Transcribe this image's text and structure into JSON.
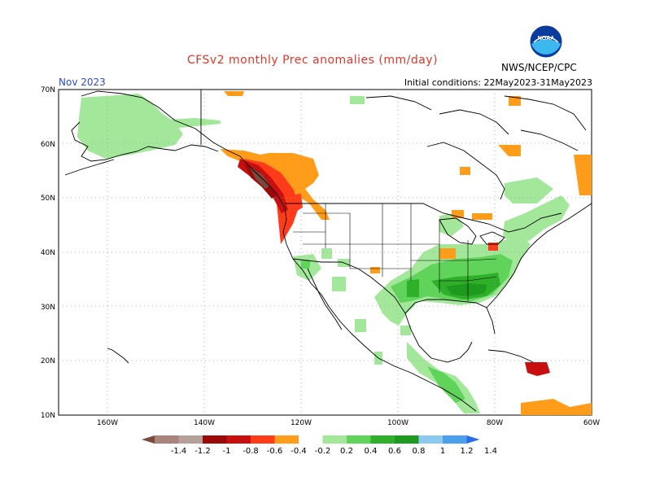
{
  "header": {
    "title": "CFSv2 monthly Prec anomalies (mm/day)",
    "month": "Nov 2023",
    "initial_conditions": "Initial conditions: 22May2023-31May2023",
    "agency": "NWS/NCEP/CPC",
    "logo_text": "NOAA"
  },
  "map": {
    "lat_labels": [
      "70N",
      "60N",
      "50N",
      "40N",
      "30N",
      "20N",
      "10N"
    ],
    "lon_labels": [
      "160W",
      "140W",
      "120W",
      "100W",
      "80W",
      "60W"
    ],
    "colors": {
      "coast": "#000000",
      "grid": "#9a9a9a",
      "wet_light": "#a3e89a",
      "wet_mid": "#5fd35a",
      "wet_strong": "#2faf2a",
      "wet_very": "#1e9a1e",
      "dry_light": "#ff9d1a",
      "dry_mid": "#ff3b1a",
      "dry_strong": "#c80f0f",
      "dry_very": "#9b0a0a",
      "dry_extreme": "#9a7a6e"
    }
  },
  "colorbar": {
    "labels": [
      "-1.4",
      "-1.2",
      "-1",
      "-0.8",
      "-0.6",
      "-0.4",
      "-0.2",
      "0.2",
      "0.4",
      "0.6",
      "0.8",
      "1",
      "1.2",
      "1.4"
    ],
    "colors": [
      "#7a4a3c",
      "#a9847a",
      "#b5a09a",
      "#9b0a0a",
      "#c80f0f",
      "#ff3b1a",
      "#ff9d1a",
      "#ffffff",
      "#a3e89a",
      "#5fd35a",
      "#2faf2a",
      "#1e9a1e",
      "#8cc9f0",
      "#4aa0ea",
      "#2a6ee6"
    ]
  }
}
